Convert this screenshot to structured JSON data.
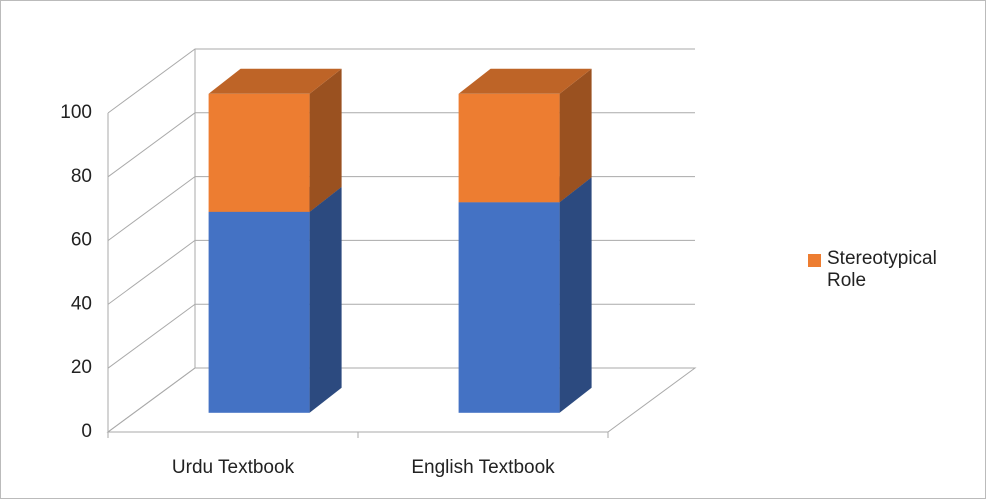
{
  "chart_data": {
    "type": "bar3d_stacked",
    "categories": [
      "Urdu Textbook",
      "English Textbook"
    ],
    "series": [
      {
        "color": "#4472c4",
        "values": [
          63,
          66
        ]
      },
      {
        "name": "Stereotypical Role",
        "color": "#ed7d31",
        "values": [
          37,
          34
        ]
      }
    ],
    "ylim": [
      0,
      100
    ],
    "yticks": [
      0,
      20,
      40,
      60,
      80,
      100
    ],
    "grid": true,
    "legend": "right"
  }
}
